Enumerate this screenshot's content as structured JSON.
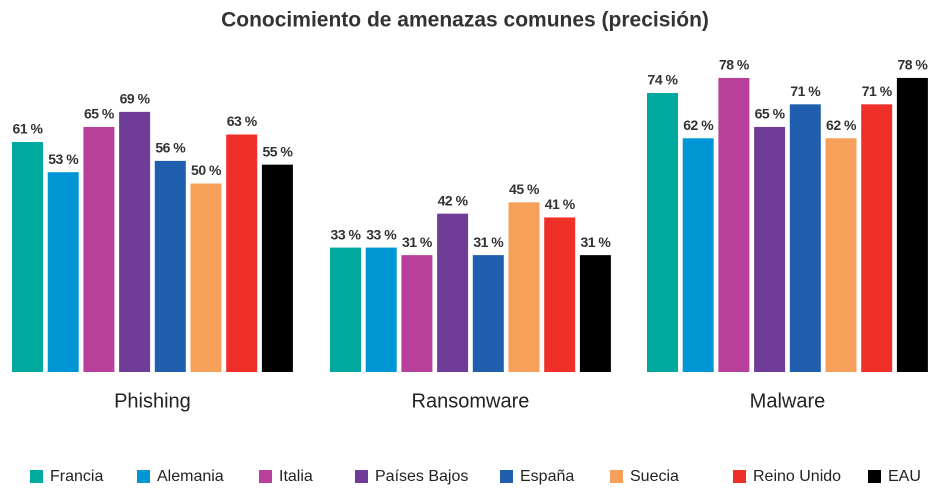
{
  "chart_data": {
    "type": "bar",
    "title": "Conocimiento de amenazas comunes (precisión)",
    "categories": [
      "Phishing",
      "Ransomware",
      "Malware"
    ],
    "series": [
      {
        "name": "Francia",
        "color": "#00a99d",
        "values": [
          61,
          33,
          74
        ],
        "value_labels": [
          "61 %",
          "33 %",
          "74 %"
        ]
      },
      {
        "name": "Alemania",
        "color": "#0096d6",
        "values": [
          53,
          33,
          62
        ],
        "value_labels": [
          "53 %",
          "33 %",
          "62 %"
        ]
      },
      {
        "name": "Italia",
        "color": "#b8409a",
        "values": [
          65,
          31,
          78
        ],
        "value_labels": [
          "65 %",
          "31 %",
          "78 %"
        ]
      },
      {
        "name": "Países Bajos",
        "color": "#6f3c97",
        "values": [
          69,
          42,
          65
        ],
        "value_labels": [
          "69 %",
          "42 %",
          "65 %"
        ]
      },
      {
        "name": "España",
        "color": "#1f5fad",
        "values": [
          56,
          31,
          71
        ],
        "value_labels": [
          "56 %",
          "31 %",
          "71 %"
        ]
      },
      {
        "name": "Suecia",
        "color": "#f7a05a",
        "values": [
          50,
          45,
          62
        ],
        "value_labels": [
          "50 %",
          "45 %",
          "62 %"
        ]
      },
      {
        "name": "Reino Unido",
        "color": "#ee3028",
        "values": [
          63,
          41,
          71
        ],
        "value_labels": [
          "63 %",
          "41 %",
          "71 %"
        ]
      },
      {
        "name": "EAU",
        "color": "#000000",
        "values": [
          55,
          31,
          78
        ],
        "value_labels": [
          "55 %",
          "31 %",
          "78 %"
        ]
      }
    ],
    "legend": "bottom"
  }
}
